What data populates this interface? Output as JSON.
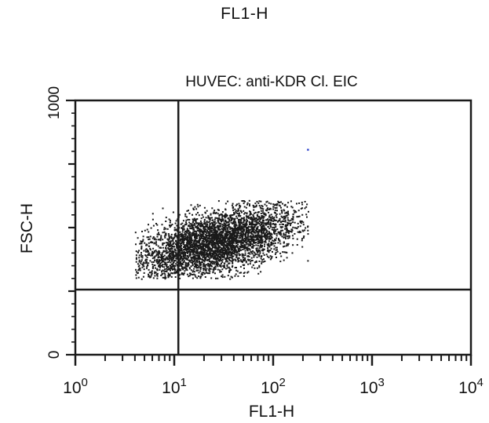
{
  "page_title": "FL1-H",
  "chart_data": {
    "type": "scatter",
    "title": "HUVEC: anti-KDR Cl. EIC",
    "xlabel": "FL1-H",
    "ylabel": "FSC-H",
    "xscale": "log",
    "xlim": [
      1,
      10000
    ],
    "ylim": [
      0,
      1000
    ],
    "xticks": [
      {
        "base": "10",
        "exp": "0",
        "value": 1
      },
      {
        "base": "10",
        "exp": "1",
        "value": 10
      },
      {
        "base": "10",
        "exp": "2",
        "value": 100
      },
      {
        "base": "10",
        "exp": "3",
        "value": 1000
      },
      {
        "base": "10",
        "exp": "4",
        "value": 10000
      }
    ],
    "yticks": [
      "0",
      "1000"
    ],
    "gates": {
      "x": 11,
      "y": 256
    },
    "cluster": {
      "description_free": true,
      "log_x_center": 1.4,
      "y_center": 440,
      "log_x_sd": 0.42,
      "y_sd": 75,
      "correlation": 0.55,
      "log_x_range": [
        0.6,
        2.35
      ],
      "y_range": [
        300,
        610
      ],
      "n_points": 4200
    },
    "outliers": [
      {
        "x": 220,
        "y": 810
      }
    ],
    "grid": false,
    "colors": {
      "points": "#1a1a1a",
      "outlier": "#3b4fd0",
      "axes": "#1a1a1a"
    }
  }
}
